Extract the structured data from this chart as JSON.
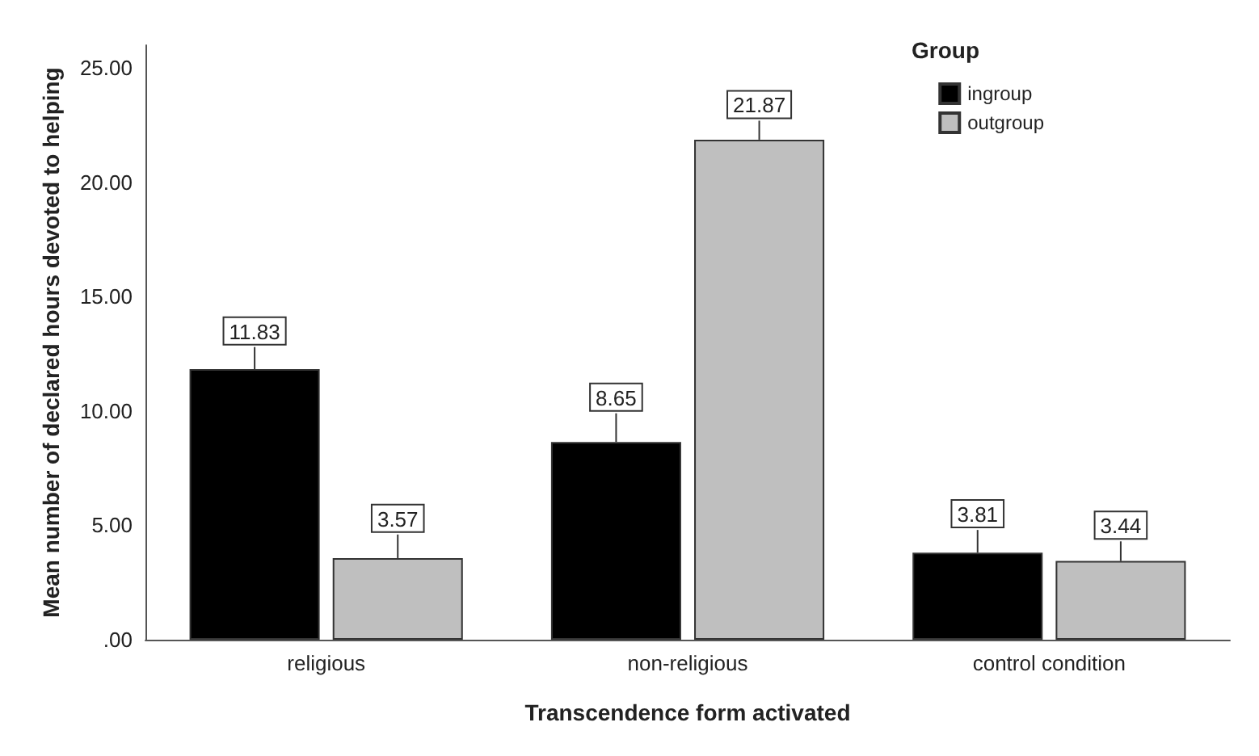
{
  "chart_data": {
    "type": "bar",
    "xlabel": "Transcendence form activated",
    "ylabel": "Mean number of declared hours devoted to helping",
    "legend_title": "Group",
    "categories": [
      "religious",
      "non-religious",
      "control condition"
    ],
    "series": [
      {
        "name": "ingroup",
        "color": "#000000",
        "values": [
          11.83,
          8.65,
          3.81
        ],
        "errors": [
          [
            11.83,
            12.8
          ],
          [
            8.65,
            9.9
          ],
          [
            3.81,
            4.8
          ]
        ]
      },
      {
        "name": "outgroup",
        "color": "#bfbfbf",
        "values": [
          3.57,
          21.87,
          3.44
        ],
        "errors": [
          [
            3.57,
            4.6
          ],
          [
            21.87,
            22.7
          ],
          [
            3.44,
            4.3
          ]
        ]
      }
    ],
    "ylim": [
      0,
      26
    ],
    "yticks": [
      {
        "value": 0,
        "label": ".00"
      },
      {
        "value": 5,
        "label": "5.00"
      },
      {
        "value": 10,
        "label": "10.00"
      },
      {
        "value": 15,
        "label": "15.00"
      },
      {
        "value": 20,
        "label": "20.00"
      },
      {
        "value": 25,
        "label": "25.00"
      }
    ],
    "data_labels": true,
    "legend": "top right",
    "grid": false
  }
}
